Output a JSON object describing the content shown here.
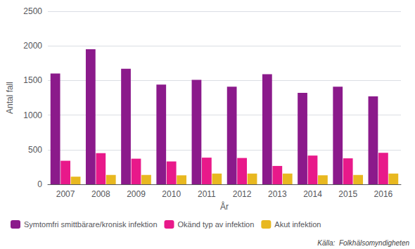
{
  "chart_data": {
    "type": "bar",
    "categories": [
      "2007",
      "2008",
      "2009",
      "2010",
      "2011",
      "2012",
      "2013",
      "2014",
      "2015",
      "2016"
    ],
    "series": [
      {
        "name": "Symtomfri smittbärare/kronisk infektion",
        "color": "#8B1A8B",
        "values": [
          1600,
          1950,
          1670,
          1440,
          1510,
          1410,
          1590,
          1320,
          1410,
          1270
        ]
      },
      {
        "name": "Okänd typ av infektion",
        "color": "#E8198A",
        "values": [
          340,
          450,
          370,
          330,
          385,
          380,
          265,
          415,
          375,
          455
        ]
      },
      {
        "name": "Akut infektion",
        "color": "#E8B820",
        "values": [
          110,
          135,
          135,
          130,
          155,
          155,
          155,
          130,
          135,
          155
        ]
      }
    ],
    "xlabel": "År",
    "ylabel": "Antal fall",
    "ylim": [
      0,
      2500
    ],
    "yticks": [
      0,
      500,
      1000,
      1500,
      2000,
      2500
    ],
    "grid": true,
    "legend": "bottom left",
    "annotation": "Källa:  Folkhälsomyndigheten"
  }
}
